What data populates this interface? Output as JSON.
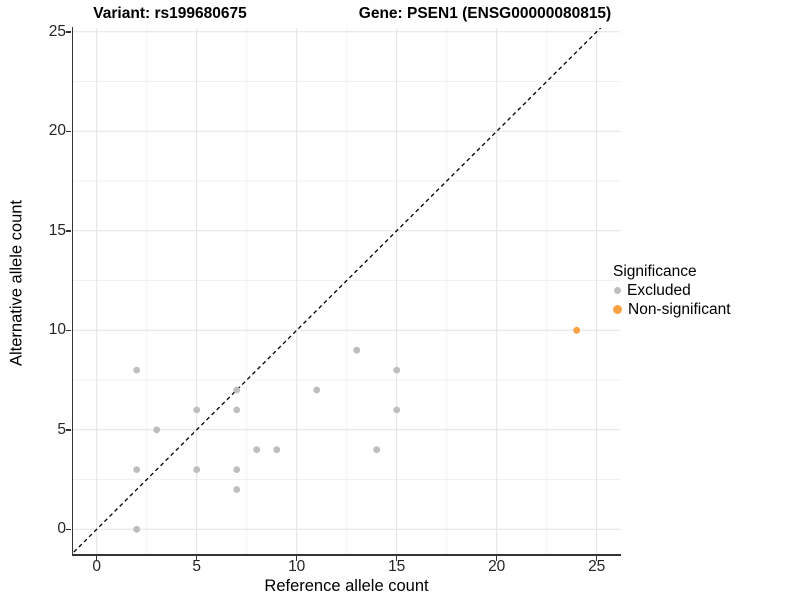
{
  "chart_data": {
    "type": "scatter",
    "titles": {
      "left": "Variant: rs199680675",
      "right": "Gene: PSEN1 (ENSG00000080815)"
    },
    "xlabel": "Reference allele count",
    "ylabel": "Alternative allele count",
    "xlim": [
      0,
      25
    ],
    "ylim": [
      0,
      25
    ],
    "x_major_ticks": [
      0,
      5,
      10,
      15,
      20,
      25
    ],
    "y_major_ticks": [
      0,
      5,
      10,
      15,
      20,
      25
    ],
    "x_minor_ticks": [
      2.5,
      7.5,
      12.5,
      17.5,
      22.5
    ],
    "y_minor_ticks": [
      2.5,
      7.5,
      12.5,
      17.5,
      22.5
    ],
    "grid": true,
    "identity_line": {
      "style": "dashed",
      "equation": "y = x",
      "color": "#000000"
    },
    "legend": {
      "title": "Significance",
      "position": "right",
      "items": [
        {
          "label": "Excluded",
          "color": "#BEBEBE"
        },
        {
          "label": "Non-significant",
          "color": "#F9A242"
        }
      ]
    },
    "series": [
      {
        "name": "Excluded",
        "color": "#BEBEBE",
        "points": [
          [
            2,
            0
          ],
          [
            2,
            3
          ],
          [
            2,
            8
          ],
          [
            3,
            5
          ],
          [
            5,
            3
          ],
          [
            5,
            6
          ],
          [
            7,
            2
          ],
          [
            7,
            3
          ],
          [
            7,
            6
          ],
          [
            7,
            7
          ],
          [
            8,
            4
          ],
          [
            9,
            4
          ],
          [
            11,
            7
          ],
          [
            13,
            9
          ],
          [
            14,
            4
          ],
          [
            15,
            6
          ],
          [
            15,
            8
          ]
        ]
      },
      {
        "name": "Non-significant",
        "color": "#F9A242",
        "points": [
          [
            24,
            10
          ]
        ]
      }
    ],
    "colors": {
      "grid_major": "#E3E3E3",
      "grid_minor": "#F1F1F1",
      "axis": "#333333"
    }
  }
}
